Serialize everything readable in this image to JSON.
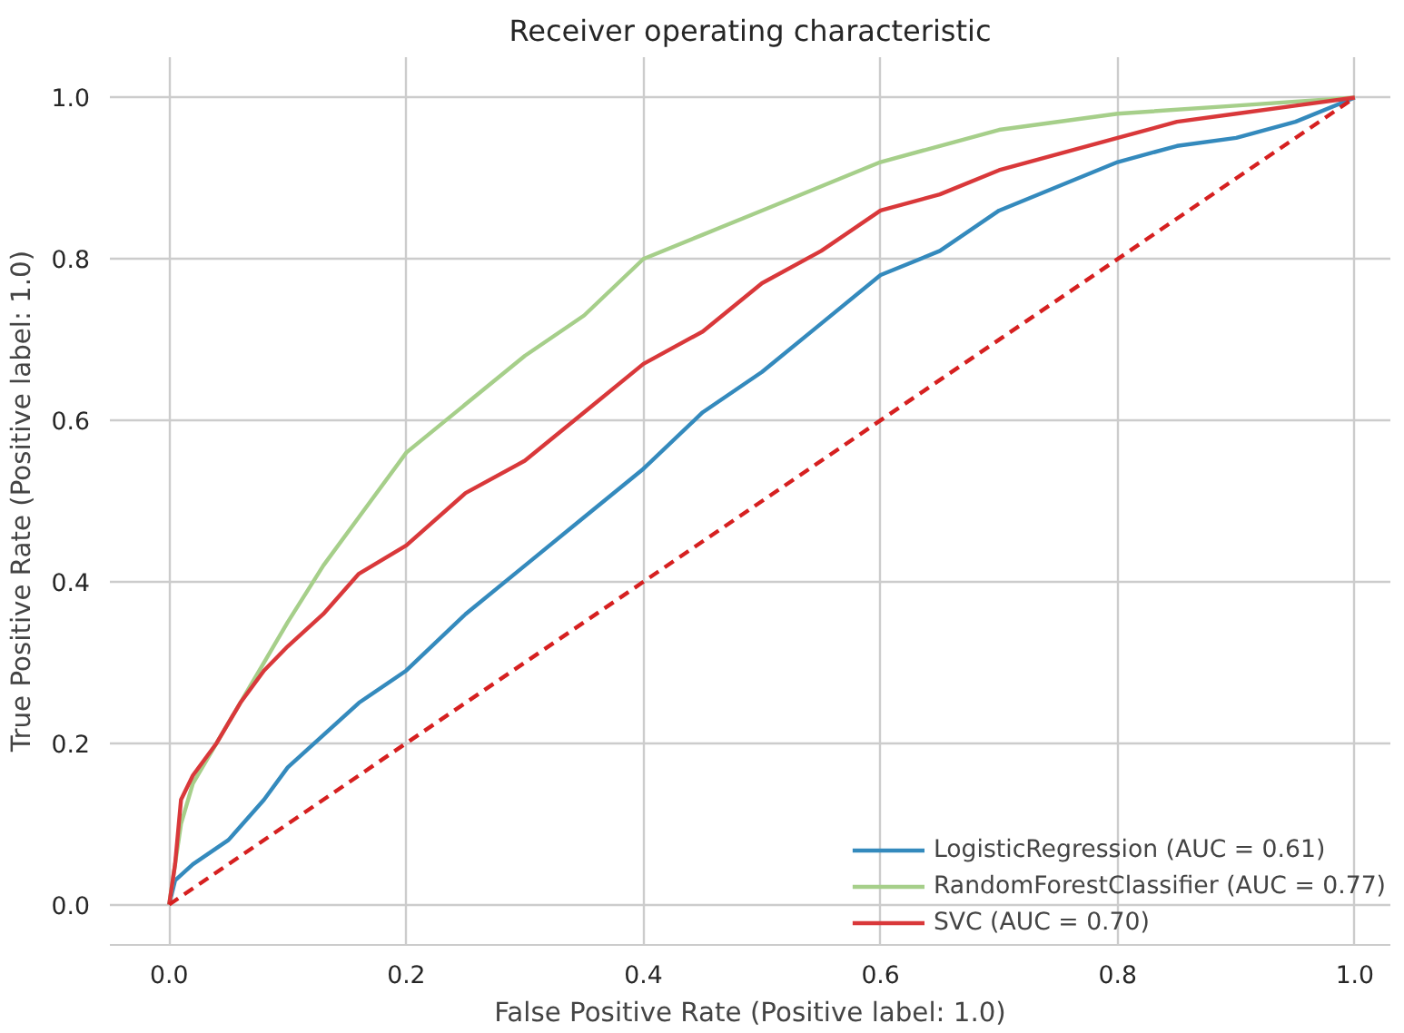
{
  "chart_data": {
    "type": "line",
    "title": "Receiver operating characteristic",
    "xlabel": "False Positive Rate (Positive label: 1.0)",
    "ylabel": "True Positive Rate (Positive label: 1.0)",
    "xlim": [
      -0.05,
      1.03
    ],
    "ylim": [
      -0.05,
      1.05
    ],
    "xticks": [
      {
        "value": 0,
        "label": "0.0"
      },
      0.2,
      0.4,
      0.6,
      0.8,
      {
        "value": 1,
        "label": "1.0"
      }
    ],
    "yticks": [
      {
        "value": 0,
        "label": "0.0"
      },
      0.2,
      0.4,
      0.6,
      0.8,
      {
        "value": 1,
        "label": "1.0"
      }
    ],
    "grid": true,
    "legend": "bottom right",
    "line_style": "solid",
    "marker": "none",
    "series": [
      {
        "name": "LogisticRegression (AUC = 0.61)",
        "color": "#348abd",
        "x": [
          0,
          0.005,
          0.02,
          0.05,
          0.08,
          0.1,
          0.13,
          0.16,
          0.2,
          0.25,
          0.3,
          0.35,
          0.4,
          0.45,
          0.5,
          0.55,
          0.6,
          0.65,
          0.7,
          0.75,
          0.8,
          0.85,
          0.9,
          0.95,
          1
        ],
        "values": [
          0,
          0.03,
          0.05,
          0.08,
          0.13,
          0.17,
          0.21,
          0.25,
          0.29,
          0.36,
          0.42,
          0.48,
          0.54,
          0.61,
          0.66,
          0.72,
          0.78,
          0.81,
          0.86,
          0.89,
          0.92,
          0.94,
          0.95,
          0.97,
          1
        ]
      },
      {
        "name": "RandomForestClassifier (AUC = 0.77)",
        "color": "#a6cf8a",
        "x": [
          0,
          0.01,
          0.02,
          0.04,
          0.06,
          0.08,
          0.1,
          0.13,
          0.16,
          0.2,
          0.25,
          0.3,
          0.35,
          0.4,
          0.45,
          0.5,
          0.55,
          0.6,
          0.65,
          0.7,
          0.8,
          0.9,
          1
        ],
        "values": [
          0,
          0.1,
          0.15,
          0.2,
          0.25,
          0.3,
          0.35,
          0.42,
          0.48,
          0.56,
          0.62,
          0.68,
          0.73,
          0.8,
          0.83,
          0.86,
          0.89,
          0.92,
          0.94,
          0.96,
          0.98,
          0.99,
          1
        ]
      },
      {
        "name": "SVC (AUC = 0.70)",
        "color": "#d9383a",
        "x": [
          0,
          0.005,
          0.01,
          0.02,
          0.04,
          0.06,
          0.08,
          0.1,
          0.13,
          0.16,
          0.2,
          0.25,
          0.3,
          0.35,
          0.4,
          0.45,
          0.5,
          0.55,
          0.6,
          0.65,
          0.7,
          0.75,
          0.8,
          0.85,
          0.9,
          0.95,
          1
        ],
        "values": [
          0,
          0.05,
          0.13,
          0.16,
          0.2,
          0.25,
          0.29,
          0.32,
          0.36,
          0.41,
          0.445,
          0.51,
          0.55,
          0.61,
          0.67,
          0.71,
          0.77,
          0.81,
          0.86,
          0.88,
          0.91,
          0.93,
          0.95,
          0.97,
          0.98,
          0.99,
          1
        ]
      },
      {
        "color": "#d62020",
        "line_style": "dashed",
        "x": [
          0,
          1
        ],
        "values": [
          0,
          1
        ]
      }
    ]
  }
}
